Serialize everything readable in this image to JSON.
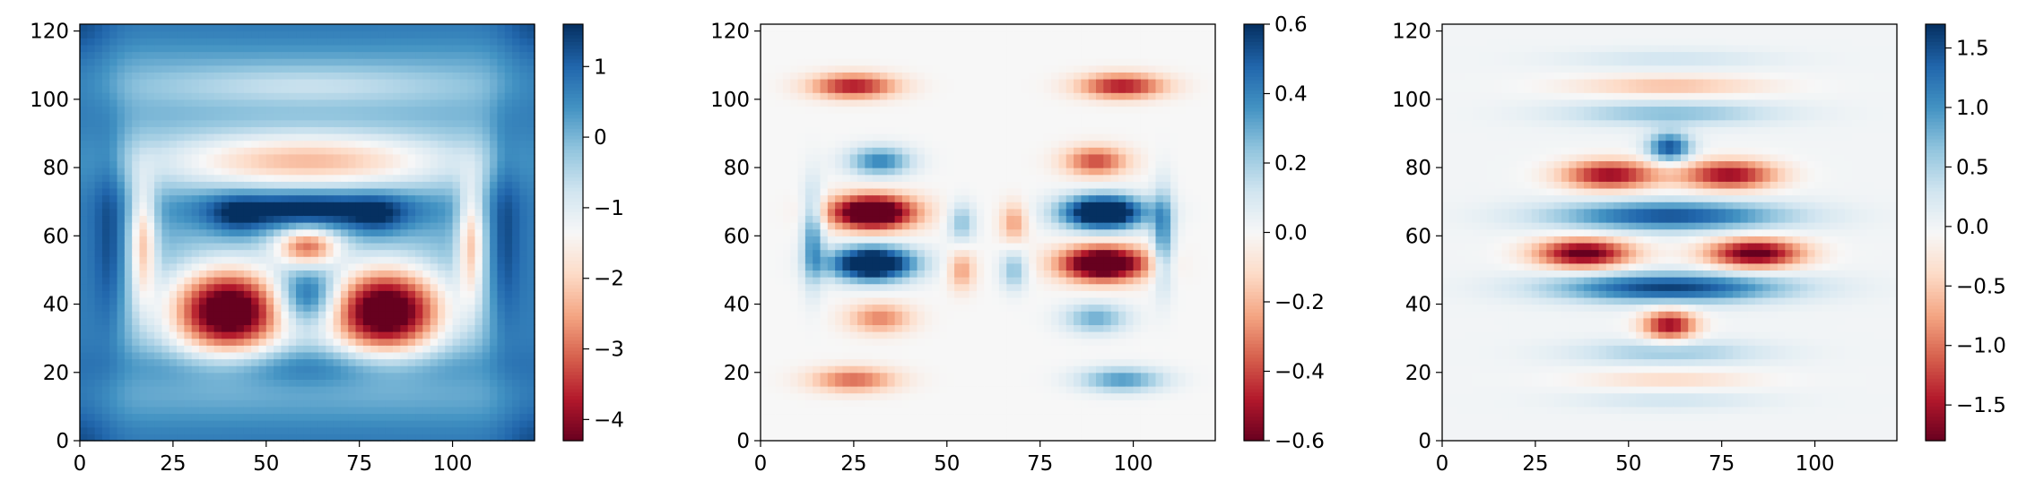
{
  "chart_data": [
    {
      "type": "heatmap",
      "title": "",
      "xlabel": "",
      "ylabel": "",
      "xlim": [
        0,
        122
      ],
      "ylim": [
        0,
        122
      ],
      "x_ticks": [
        0,
        25,
        50,
        75,
        100
      ],
      "y_ticks": [
        0,
        20,
        40,
        60,
        80,
        100,
        120
      ],
      "colormap": "RdBu",
      "colorbar": {
        "range": [
          -4.3,
          1.6
        ],
        "ticks": [
          1,
          0,
          -1,
          -2,
          -3,
          -4
        ],
        "tick_labels": [
          "1",
          "0",
          "−1",
          "−2",
          "−3",
          "−4"
        ]
      },
      "features": [
        {
          "x": 61,
          "y": 122,
          "sx": 200,
          "sy": 6,
          "v": 0.6
        },
        {
          "x": 61,
          "y": 0,
          "sx": 200,
          "sy": 6,
          "v": 0.6
        },
        {
          "x": 0,
          "y": 61,
          "sx": 6,
          "sy": 200,
          "v": 0.6
        },
        {
          "x": 122,
          "y": 61,
          "sx": 6,
          "sy": 200,
          "v": 0.6
        },
        {
          "x": 61,
          "y": 104,
          "sx": 30,
          "sy": 4,
          "v": -0.8
        },
        {
          "x": 61,
          "y": 82,
          "sx": 28,
          "sy": 6,
          "v": -2.4
        },
        {
          "x": 61,
          "y": 68,
          "sx": 20,
          "sy": 4,
          "v": 1.9
        },
        {
          "x": 42,
          "y": 66,
          "sx": 5,
          "sy": 4,
          "v": 0.8
        },
        {
          "x": 80,
          "y": 66,
          "sx": 5,
          "sy": 4,
          "v": 0.8
        },
        {
          "x": 61,
          "y": 57,
          "sx": 6,
          "sy": 4,
          "v": -3.0
        },
        {
          "x": 40,
          "y": 38,
          "sx": 11,
          "sy": 9,
          "v": -5.2
        },
        {
          "x": 82,
          "y": 38,
          "sx": 11,
          "sy": 9,
          "v": -5.2
        },
        {
          "x": 61,
          "y": 42,
          "sx": 6,
          "sy": 6,
          "v": 2.0
        },
        {
          "x": 61,
          "y": 22,
          "sx": 32,
          "sy": 4,
          "v": 0.8
        },
        {
          "x": 17,
          "y": 58,
          "sx": 2.5,
          "sy": 12,
          "v": -2.2
        },
        {
          "x": 105,
          "y": 58,
          "sx": 2.5,
          "sy": 12,
          "v": -2.2
        },
        {
          "x": 8,
          "y": 60,
          "sx": 3,
          "sy": 22,
          "v": 0.9
        },
        {
          "x": 114,
          "y": 60,
          "sx": 3,
          "sy": 22,
          "v": 0.9
        }
      ],
      "base_value": 0.1
    },
    {
      "type": "heatmap",
      "title": "",
      "xlabel": "",
      "ylabel": "",
      "xlim": [
        0,
        122
      ],
      "ylim": [
        0,
        122
      ],
      "x_ticks": [
        0,
        25,
        50,
        75,
        100
      ],
      "y_ticks": [
        0,
        20,
        40,
        60,
        80,
        100,
        120
      ],
      "colormap": "RdBu",
      "colorbar": {
        "range": [
          -0.6,
          0.6
        ],
        "ticks": [
          0.6,
          0.4,
          0.2,
          0.0,
          -0.2,
          -0.4,
          -0.6
        ],
        "tick_labels": [
          "0.6",
          "0.4",
          "0.2",
          "0.0",
          "−0.2",
          "−0.4",
          "−0.6"
        ]
      },
      "features": [
        {
          "x": 30,
          "y": 67,
          "sx": 8,
          "sy": 3.5,
          "v": -0.85
        },
        {
          "x": 92,
          "y": 67,
          "sx": 8,
          "sy": 3.5,
          "v": 0.85
        },
        {
          "x": 30,
          "y": 52,
          "sx": 8,
          "sy": 3.5,
          "v": 0.85
        },
        {
          "x": 92,
          "y": 52,
          "sx": 8,
          "sy": 3.5,
          "v": -0.85
        },
        {
          "x": 54,
          "y": 64,
          "sx": 2.5,
          "sy": 4,
          "v": 0.25
        },
        {
          "x": 68,
          "y": 64,
          "sx": 2.5,
          "sy": 4,
          "v": -0.25
        },
        {
          "x": 54,
          "y": 50,
          "sx": 2.5,
          "sy": 4,
          "v": -0.25
        },
        {
          "x": 68,
          "y": 50,
          "sx": 2.5,
          "sy": 4,
          "v": 0.25
        },
        {
          "x": 25,
          "y": 104,
          "sx": 8,
          "sy": 2.5,
          "v": -0.5
        },
        {
          "x": 97,
          "y": 104,
          "sx": 8,
          "sy": 2.5,
          "v": -0.5
        },
        {
          "x": 32,
          "y": 82,
          "sx": 6,
          "sy": 3,
          "v": 0.4
        },
        {
          "x": 90,
          "y": 82,
          "sx": 6,
          "sy": 3,
          "v": -0.4
        },
        {
          "x": 32,
          "y": 36,
          "sx": 6,
          "sy": 3,
          "v": -0.3
        },
        {
          "x": 90,
          "y": 36,
          "sx": 6,
          "sy": 3,
          "v": 0.3
        },
        {
          "x": 25,
          "y": 18,
          "sx": 8,
          "sy": 2.5,
          "v": -0.35
        },
        {
          "x": 97,
          "y": 18,
          "sx": 8,
          "sy": 2.5,
          "v": 0.35
        },
        {
          "x": 14,
          "y": 60,
          "sx": 2,
          "sy": 10,
          "v": 0.35
        },
        {
          "x": 108,
          "y": 60,
          "sx": 2,
          "sy": 10,
          "v": 0.35
        }
      ],
      "base_value": 0.0
    },
    {
      "type": "heatmap",
      "title": "",
      "xlabel": "",
      "ylabel": "",
      "xlim": [
        0,
        122
      ],
      "ylim": [
        0,
        122
      ],
      "x_ticks": [
        0,
        25,
        50,
        75,
        100
      ],
      "y_ticks": [
        0,
        20,
        40,
        60,
        80,
        100,
        120
      ],
      "colormap": "RdBu",
      "colorbar": {
        "range": [
          -1.8,
          1.7
        ],
        "ticks": [
          1.5,
          1.0,
          0.5,
          0.0,
          -0.5,
          -1.0,
          -1.5
        ],
        "tick_labels": [
          "1.5",
          "1.0",
          "0.5",
          "0.0",
          "−0.5",
          "−1.0",
          "−1.5"
        ]
      },
      "features": [
        {
          "x": 61,
          "y": 86,
          "sx": 4,
          "sy": 3,
          "v": 1.5
        },
        {
          "x": 45,
          "y": 78,
          "sx": 9,
          "sy": 3,
          "v": -1.6
        },
        {
          "x": 77,
          "y": 78,
          "sx": 9,
          "sy": 3,
          "v": -1.6
        },
        {
          "x": 61,
          "y": 66,
          "sx": 22,
          "sy": 3,
          "v": 1.5
        },
        {
          "x": 38,
          "y": 55,
          "sx": 9,
          "sy": 3,
          "v": -1.9
        },
        {
          "x": 84,
          "y": 55,
          "sx": 9,
          "sy": 3,
          "v": -1.9
        },
        {
          "x": 61,
          "y": 45,
          "sx": 22,
          "sy": 3,
          "v": 1.6
        },
        {
          "x": 61,
          "y": 34,
          "sx": 5,
          "sy": 3,
          "v": -1.6
        },
        {
          "x": 61,
          "y": 96,
          "sx": 20,
          "sy": 2.5,
          "v": 0.7
        },
        {
          "x": 61,
          "y": 104,
          "sx": 18,
          "sy": 2,
          "v": -0.6
        },
        {
          "x": 61,
          "y": 112,
          "sx": 20,
          "sy": 2,
          "v": 0.3
        },
        {
          "x": 61,
          "y": 26,
          "sx": 18,
          "sy": 2.5,
          "v": 0.6
        },
        {
          "x": 61,
          "y": 18,
          "sx": 16,
          "sy": 2,
          "v": -0.4
        },
        {
          "x": 61,
          "y": 12,
          "sx": 18,
          "sy": 2,
          "v": 0.3
        }
      ],
      "base_value": 0.0
    }
  ],
  "colors": {
    "colormap_stops": [
      "#67001f",
      "#b2182b",
      "#d6604d",
      "#f4a582",
      "#fddbc7",
      "#f7f7f7",
      "#d1e5f0",
      "#92c5de",
      "#4393c3",
      "#2166ac",
      "#053061"
    ]
  }
}
